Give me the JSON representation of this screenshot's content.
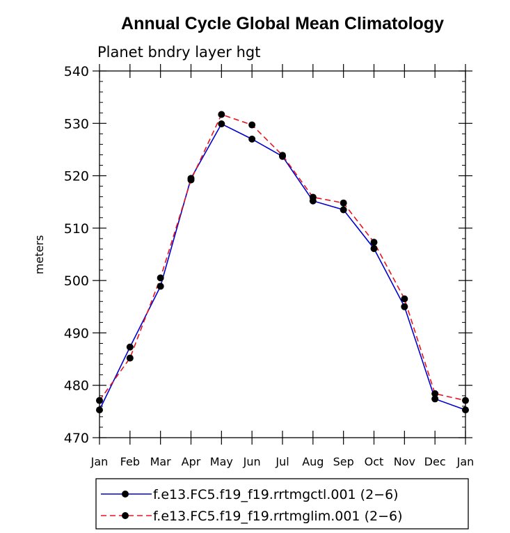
{
  "chart_data": {
    "type": "line",
    "title": "Annual Cycle Global Mean Climatology",
    "subtitle": "Planet bndry layer hgt",
    "ylabel": "meters",
    "xlabel": "",
    "ylim": [
      470,
      540
    ],
    "yticks": [
      470,
      480,
      490,
      500,
      510,
      520,
      530,
      540
    ],
    "categories": [
      "Jan",
      "Feb",
      "Mar",
      "Apr",
      "May",
      "Jun",
      "Jul",
      "Aug",
      "Sep",
      "Oct",
      "Nov",
      "Dec",
      "Jan"
    ],
    "series": [
      {
        "name": "f.e13.FC5.f19_f19.rrtmgctl.001 (2−6)",
        "color": "#0000cc",
        "dash": "solid",
        "values": [
          475.3,
          487.3,
          498.9,
          519.5,
          529.9,
          527.0,
          523.7,
          515.2,
          513.5,
          506.1,
          495.0,
          477.4,
          475.3
        ]
      },
      {
        "name": "f.e13.FC5.f19_f19.rrtmglim.001 (2−6)",
        "color": "#e8141c",
        "dash": "dashed",
        "values": [
          477.1,
          485.2,
          500.5,
          519.2,
          531.7,
          529.7,
          523.9,
          515.9,
          514.8,
          507.3,
          496.5,
          478.4,
          477.1
        ]
      }
    ],
    "legend_position": "bottom"
  }
}
